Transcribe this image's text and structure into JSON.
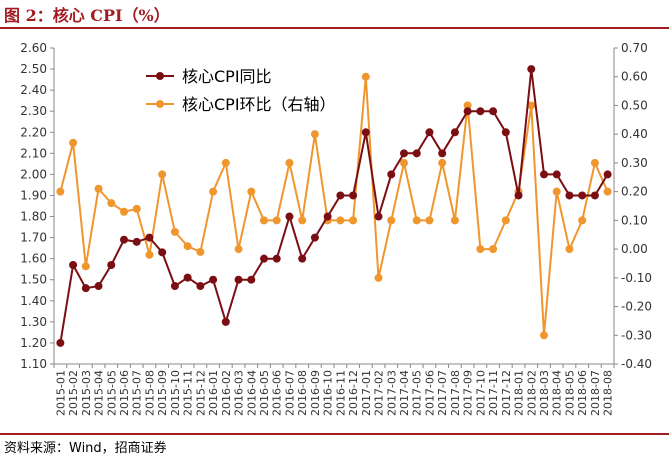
{
  "header": {
    "title": "图 2：核心 CPI（%）"
  },
  "footer": {
    "source": "资料来源：Wind，招商证券"
  },
  "chart_data": {
    "type": "line",
    "categories": [
      "2015-01",
      "2015-02",
      "2015-03",
      "2015-04",
      "2015-05",
      "2015-06",
      "2015-07",
      "2015-08",
      "2015-09",
      "2015-10",
      "2015-11",
      "2015-12",
      "2016-01",
      "2016-02",
      "2016-03",
      "2016-04",
      "2016-05",
      "2016-06",
      "2016-07",
      "2016-08",
      "2016-09",
      "2016-10",
      "2016-11",
      "2016-12",
      "2017-01",
      "2017-02",
      "2017-03",
      "2017-04",
      "2017-05",
      "2017-06",
      "2017-07",
      "2017-08",
      "2017-09",
      "2017-10",
      "2017-11",
      "2017-12",
      "2018-01",
      "2018-02",
      "2018-03",
      "2018-04",
      "2018-05",
      "2018-06",
      "2018-07",
      "2018-08"
    ],
    "series": [
      {
        "name": "核心CPI同比",
        "axis": "left",
        "color": "#7b0e12",
        "values": [
          1.2,
          1.57,
          1.46,
          1.47,
          1.57,
          1.69,
          1.68,
          1.7,
          1.63,
          1.47,
          1.51,
          1.47,
          1.5,
          1.3,
          1.5,
          1.5,
          1.6,
          1.6,
          1.8,
          1.6,
          1.7,
          1.8,
          1.9,
          1.9,
          2.2,
          1.8,
          2.0,
          2.1,
          2.1,
          2.2,
          2.1,
          2.2,
          2.3,
          2.3,
          2.3,
          2.2,
          1.9,
          2.5,
          2.0,
          2.0,
          1.9,
          1.9,
          1.9,
          2.0
        ]
      },
      {
        "name": "核心CPI环比（右轴）",
        "axis": "right",
        "color": "#f0962e",
        "values": [
          0.2,
          0.37,
          -0.06,
          0.21,
          0.16,
          0.13,
          0.14,
          -0.02,
          0.26,
          0.06,
          0.01,
          -0.01,
          0.2,
          0.3,
          0.0,
          0.2,
          0.1,
          0.1,
          0.3,
          0.1,
          0.4,
          0.1,
          0.1,
          0.1,
          0.6,
          -0.1,
          0.1,
          0.3,
          0.1,
          0.1,
          0.3,
          0.1,
          0.5,
          0.0,
          0.0,
          0.1,
          0.2,
          0.5,
          -0.3,
          0.2,
          0.0,
          0.1,
          0.3,
          0.2
        ]
      }
    ],
    "y_left": {
      "min": 1.1,
      "max": 2.6,
      "step": 0.1,
      "ticks": [
        "1.10",
        "1.20",
        "1.30",
        "1.40",
        "1.50",
        "1.60",
        "1.70",
        "1.80",
        "1.90",
        "2.00",
        "2.10",
        "2.20",
        "2.30",
        "2.40",
        "2.50",
        "2.60"
      ]
    },
    "y_right": {
      "min": -0.4,
      "max": 0.7,
      "step": 0.1,
      "ticks": [
        "-0.40",
        "-0.30",
        "-0.20",
        "-0.10",
        "0.00",
        "0.10",
        "0.20",
        "0.30",
        "0.40",
        "0.50",
        "0.60",
        "0.70"
      ]
    },
    "legend_position": "top-left",
    "grid": false
  }
}
